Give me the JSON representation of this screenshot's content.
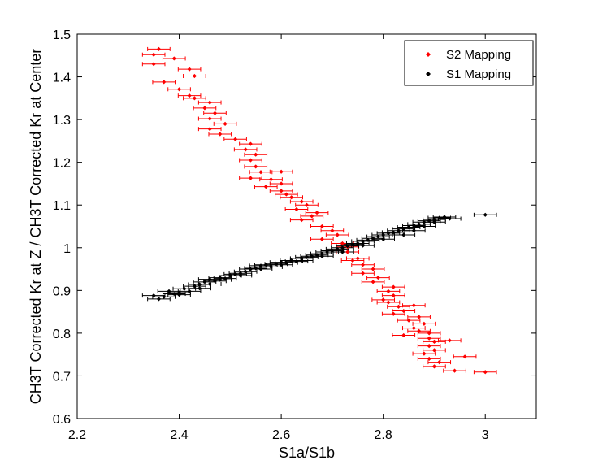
{
  "chart_data": {
    "type": "scatter",
    "xlabel": "S1a/S1b",
    "ylabel": "CH3T Corrected Kr at Z / CH3T Corrected Kr at Center",
    "xlim": [
      2.2,
      3.1
    ],
    "ylim": [
      0.6,
      1.5
    ],
    "xticks": [
      "2.2",
      "2.4",
      "2.6",
      "2.8",
      "3"
    ],
    "yticks": [
      "0.6",
      "0.7",
      "0.8",
      "0.9",
      "1",
      "1.1",
      "1.2",
      "1.3",
      "1.4",
      "1.5"
    ],
    "legend": {
      "position": "top-right"
    },
    "grid": false,
    "series": [
      {
        "name": "S2 Mapping",
        "color": "#ff0000",
        "error_x": 0.022,
        "points": [
          [
            2.36,
            1.465
          ],
          [
            2.35,
            1.452
          ],
          [
            2.39,
            1.443
          ],
          [
            2.35,
            1.43
          ],
          [
            2.42,
            1.418
          ],
          [
            2.43,
            1.402
          ],
          [
            2.37,
            1.388
          ],
          [
            2.4,
            1.371
          ],
          [
            2.42,
            1.356
          ],
          [
            2.43,
            1.35
          ],
          [
            2.46,
            1.34
          ],
          [
            2.45,
            1.327
          ],
          [
            2.47,
            1.315
          ],
          [
            2.46,
            1.302
          ],
          [
            2.49,
            1.29
          ],
          [
            2.46,
            1.278
          ],
          [
            2.48,
            1.266
          ],
          [
            2.51,
            1.254
          ],
          [
            2.54,
            1.243
          ],
          [
            2.53,
            1.23
          ],
          [
            2.55,
            1.218
          ],
          [
            2.54,
            1.205
          ],
          [
            2.55,
            1.19
          ],
          [
            2.56,
            1.177
          ],
          [
            2.6,
            1.178
          ],
          [
            2.54,
            1.163
          ],
          [
            2.58,
            1.16
          ],
          [
            2.6,
            1.15
          ],
          [
            2.57,
            1.143
          ],
          [
            2.6,
            1.133
          ],
          [
            2.61,
            1.125
          ],
          [
            2.62,
            1.118
          ],
          [
            2.64,
            1.108
          ],
          [
            2.65,
            1.1
          ],
          [
            2.63,
            1.09
          ],
          [
            2.67,
            1.082
          ],
          [
            2.66,
            1.074
          ],
          [
            2.64,
            1.065
          ],
          [
            2.68,
            1.05
          ],
          [
            2.7,
            1.04
          ],
          [
            2.71,
            1.03
          ],
          [
            2.68,
            1.02
          ],
          [
            2.72,
            1.01
          ],
          [
            2.73,
            1.002
          ],
          [
            2.73,
            0.99
          ],
          [
            2.75,
            0.975
          ],
          [
            2.74,
            0.97
          ],
          [
            2.76,
            0.96
          ],
          [
            2.78,
            0.95
          ],
          [
            2.76,
            0.94
          ],
          [
            2.79,
            0.93
          ],
          [
            2.78,
            0.92
          ],
          [
            2.82,
            0.908
          ],
          [
            2.81,
            0.898
          ],
          [
            2.82,
            0.888
          ],
          [
            2.8,
            0.878
          ],
          [
            2.81,
            0.872
          ],
          [
            2.83,
            0.862
          ],
          [
            2.86,
            0.865
          ],
          [
            2.84,
            0.852
          ],
          [
            2.82,
            0.845
          ],
          [
            2.87,
            0.838
          ],
          [
            2.85,
            0.83
          ],
          [
            2.88,
            0.822
          ],
          [
            2.86,
            0.812
          ],
          [
            2.87,
            0.805
          ],
          [
            2.89,
            0.8
          ],
          [
            2.84,
            0.795
          ],
          [
            2.89,
            0.788
          ],
          [
            2.9,
            0.78
          ],
          [
            2.93,
            0.783
          ],
          [
            2.89,
            0.77
          ],
          [
            2.9,
            0.76
          ],
          [
            2.88,
            0.752
          ],
          [
            2.96,
            0.745
          ],
          [
            2.89,
            0.74
          ],
          [
            2.91,
            0.732
          ],
          [
            2.9,
            0.722
          ],
          [
            2.94,
            0.712
          ],
          [
            3.0,
            0.709
          ]
        ]
      },
      {
        "name": "S1 Mapping",
        "color": "#000000",
        "error_x": 0.022,
        "points": [
          [
            2.35,
            0.888
          ],
          [
            2.36,
            0.88
          ],
          [
            2.37,
            0.885
          ],
          [
            2.38,
            0.898
          ],
          [
            2.39,
            0.892
          ],
          [
            2.4,
            0.895
          ],
          [
            2.41,
            0.904
          ],
          [
            2.42,
            0.898
          ],
          [
            2.43,
            0.91
          ],
          [
            2.44,
            0.914
          ],
          [
            2.45,
            0.92
          ],
          [
            2.46,
            0.926
          ],
          [
            2.46,
            0.915
          ],
          [
            2.47,
            0.922
          ],
          [
            2.48,
            0.93
          ],
          [
            2.49,
            0.928
          ],
          [
            2.5,
            0.935
          ],
          [
            2.51,
            0.938
          ],
          [
            2.52,
            0.94
          ],
          [
            2.53,
            0.944
          ],
          [
            2.54,
            0.95
          ],
          [
            2.55,
            0.952
          ],
          [
            2.56,
            0.958
          ],
          [
            2.57,
            0.96
          ],
          [
            2.58,
            0.955
          ],
          [
            2.59,
            0.962
          ],
          [
            2.6,
            0.966
          ],
          [
            2.61,
            0.965
          ],
          [
            2.62,
            0.97
          ],
          [
            2.63,
            0.968
          ],
          [
            2.64,
            0.975
          ],
          [
            2.65,
            0.978
          ],
          [
            2.66,
            0.98
          ],
          [
            2.67,
            0.983
          ],
          [
            2.68,
            0.986
          ],
          [
            2.69,
            0.99
          ],
          [
            2.7,
            0.993
          ],
          [
            2.71,
            0.997
          ],
          [
            2.72,
            1.0
          ],
          [
            2.73,
            1.004
          ],
          [
            2.74,
            1.008
          ],
          [
            2.75,
            1.01
          ],
          [
            2.76,
            1.015
          ],
          [
            2.77,
            1.018
          ],
          [
            2.78,
            1.022
          ],
          [
            2.79,
            1.026
          ],
          [
            2.8,
            1.03
          ],
          [
            2.81,
            1.034
          ],
          [
            2.82,
            1.036
          ],
          [
            2.83,
            1.04
          ],
          [
            2.84,
            1.044
          ],
          [
            2.85,
            1.048
          ],
          [
            2.86,
            1.052
          ],
          [
            2.86,
            1.04
          ],
          [
            2.87,
            1.055
          ],
          [
            2.88,
            1.06
          ],
          [
            2.89,
            1.063
          ],
          [
            2.9,
            1.066
          ],
          [
            2.91,
            1.07
          ],
          [
            2.92,
            1.072
          ],
          [
            2.88,
            1.05
          ],
          [
            2.84,
            1.03
          ],
          [
            2.8,
            1.02
          ],
          [
            2.76,
            1.005
          ],
          [
            2.72,
            0.99
          ],
          [
            2.68,
            0.98
          ],
          [
            2.64,
            0.97
          ],
          [
            2.6,
            0.96
          ],
          [
            2.56,
            0.95
          ],
          [
            2.52,
            0.935
          ],
          [
            2.48,
            0.925
          ],
          [
            2.44,
            0.905
          ],
          [
            2.4,
            0.89
          ],
          [
            2.9,
            1.06
          ],
          [
            2.93,
            1.068
          ],
          [
            3.0,
            1.077
          ]
        ]
      }
    ]
  }
}
